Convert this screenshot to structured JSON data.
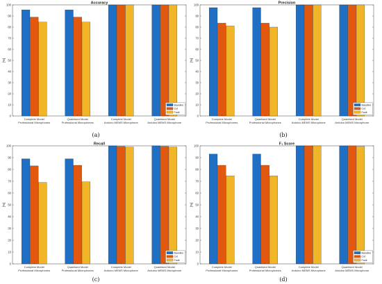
{
  "figure": {
    "series_colors": [
      "#1f6fc4",
      "#e2580f",
      "#f1b528"
    ]
  },
  "chart_data": [
    {
      "type": "bar",
      "panel": "(a)",
      "title": "Accuracy",
      "ylabel": "[%]",
      "ylim": [
        0,
        100
      ],
      "yticks": [
        0,
        10,
        20,
        30,
        40,
        50,
        60,
        70,
        80,
        90,
        100
      ],
      "categories": [
        [
          "Complete Model",
          "Professional Microphones"
        ],
        [
          "Quantised Model",
          "Professional Microphones"
        ],
        [
          "Complete Model",
          "Arduino MEMS Microphone"
        ],
        [
          "Quantised Model",
          "Arduino MEMS Microphone"
        ]
      ],
      "series": [
        {
          "name": "Baseline",
          "values": [
            95.5,
            95.5,
            100,
            100
          ]
        },
        {
          "name": "Cut",
          "values": [
            89,
            89,
            100,
            100
          ]
        },
        {
          "name": "Fault",
          "values": [
            84.5,
            84.5,
            100,
            100
          ]
        }
      ],
      "legend": "bottom-right",
      "grid": false
    },
    {
      "type": "bar",
      "panel": "(b)",
      "title": "Precision",
      "ylabel": "[%]",
      "ylim": [
        0,
        100
      ],
      "yticks": [
        0,
        10,
        20,
        30,
        40,
        50,
        60,
        70,
        80,
        90,
        100
      ],
      "categories": [
        [
          "Complete Model",
          "Professional Microphones"
        ],
        [
          "Quantised Model",
          "Professional Microphones"
        ],
        [
          "Complete Model",
          "Arduino MEMS Microphone"
        ],
        [
          "Quantised Model",
          "Arduino MEMS Microphone"
        ]
      ],
      "series": [
        {
          "name": "Baseline",
          "values": [
            97.5,
            97.5,
            100,
            100
          ]
        },
        {
          "name": "Cut",
          "values": [
            83.5,
            83.5,
            100,
            100
          ]
        },
        {
          "name": "Fault",
          "values": [
            81,
            80,
            100,
            100
          ]
        }
      ],
      "legend": "bottom-right",
      "grid": false
    },
    {
      "type": "bar",
      "panel": "(c)",
      "title": "Recall",
      "ylabel": "[%]",
      "ylim": [
        0,
        100
      ],
      "yticks": [
        0,
        10,
        20,
        30,
        40,
        50,
        60,
        70,
        80,
        90,
        100
      ],
      "categories": [
        [
          "Complete Model",
          "Professional Microphones"
        ],
        [
          "Quantised Model",
          "Professional Microphones"
        ],
        [
          "Complete Model",
          "Arduino MEMS Microphone"
        ],
        [
          "Quantised Model",
          "Arduino MEMS Microphone"
        ]
      ],
      "series": [
        {
          "name": "Baseline",
          "values": [
            89,
            89,
            100,
            100
          ]
        },
        {
          "name": "Cut",
          "values": [
            83,
            83.5,
            99.5,
            99.5
          ]
        },
        {
          "name": "Fault",
          "values": [
            69,
            69.5,
            99,
            99
          ]
        }
      ],
      "legend": "bottom-right",
      "grid": false
    },
    {
      "type": "bar",
      "panel": "(d)",
      "title": "F₁ Score",
      "ylabel": "[%]",
      "ylim": [
        0,
        100
      ],
      "yticks": [
        0,
        10,
        20,
        30,
        40,
        50,
        60,
        70,
        80,
        90,
        100
      ],
      "categories": [
        [
          "Complete Model",
          "Professional Microphones"
        ],
        [
          "Quantised Model",
          "Professional Microphones"
        ],
        [
          "Complete Model",
          "Arduino MEMS Microphone"
        ],
        [
          "Quantised Model",
          "Arduino MEMS Microphone"
        ]
      ],
      "series": [
        {
          "name": "Baseline",
          "values": [
            93,
            93,
            100,
            100
          ]
        },
        {
          "name": "Cut",
          "values": [
            83.5,
            83.5,
            100,
            100
          ]
        },
        {
          "name": "Fault",
          "values": [
            74.5,
            74.5,
            100,
            99.5
          ]
        }
      ],
      "legend": "bottom-right",
      "grid": false
    }
  ]
}
